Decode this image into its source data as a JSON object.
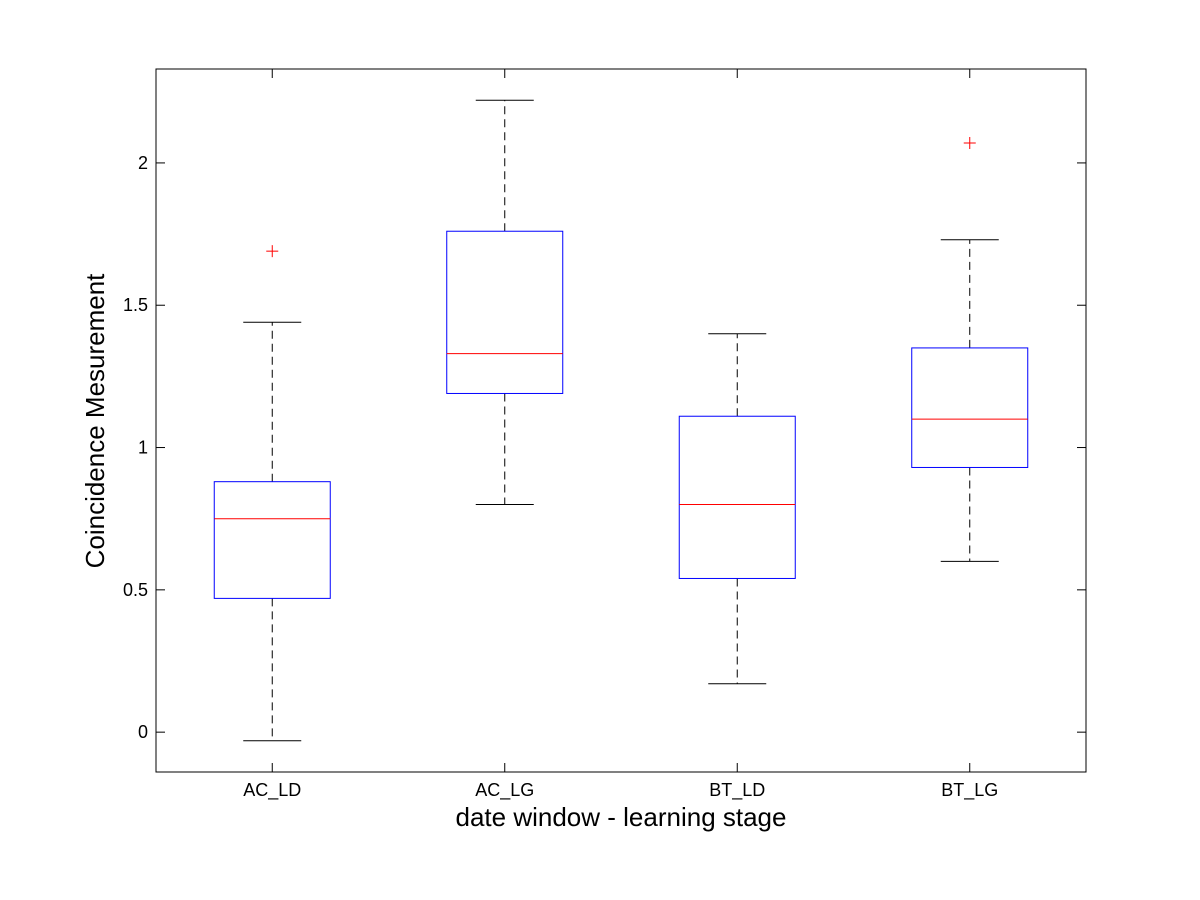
{
  "chart_data": {
    "type": "box",
    "title": "",
    "xlabel": "date window - learning stage",
    "ylabel": "Coincidence Mesurement",
    "categories": [
      "AC_LD",
      "AC_LG",
      "BT_LD",
      "BT_LG"
    ],
    "boxes": [
      {
        "category": "AC_LD",
        "whisker_low": -0.03,
        "q1": 0.47,
        "median": 0.75,
        "q3": 0.88,
        "whisker_high": 1.44,
        "outliers": [
          1.69
        ]
      },
      {
        "category": "AC_LG",
        "whisker_low": 0.8,
        "q1": 1.19,
        "median": 1.33,
        "q3": 1.76,
        "whisker_high": 2.22,
        "outliers": []
      },
      {
        "category": "BT_LD",
        "whisker_low": 0.17,
        "q1": 0.54,
        "median": 0.8,
        "q3": 1.11,
        "whisker_high": 1.4,
        "outliers": []
      },
      {
        "category": "BT_LG",
        "whisker_low": 0.6,
        "q1": 0.93,
        "median": 1.1,
        "q3": 1.35,
        "whisker_high": 1.73,
        "outliers": [
          2.07
        ]
      }
    ],
    "ylim": [
      -0.14,
      2.33
    ],
    "yticks": [
      0,
      0.5,
      1,
      1.5,
      2
    ],
    "ytick_labels": [
      "0",
      "0.5",
      "1",
      "1.5",
      "2"
    ],
    "grid": false,
    "legend": "none",
    "colors": {
      "box": "#0000ff",
      "median": "#ff0000",
      "whisker": "#000000",
      "outlier": "#ff0000",
      "axes": "#000000"
    }
  }
}
